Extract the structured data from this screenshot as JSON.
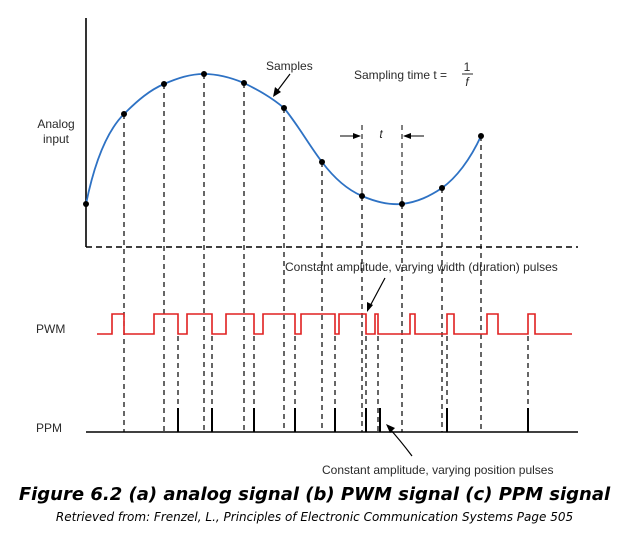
{
  "labels": {
    "analog_input_line1": "Analog",
    "analog_input_line2": "input",
    "samples": "Samples",
    "sampling_time_prefix": "Sampling time t =",
    "sampling_time_numerator": "1",
    "sampling_time_denominator": "f",
    "period_t": "t",
    "pwm_note": "Constant amplitude, varying width (duration) pulses",
    "pwm": "PWM",
    "ppm": "PPM",
    "ppm_note": "Constant amplitude, varying position pulses"
  },
  "caption": {
    "title": "Figure 6.2 (a) analog signal (b) PWM signal (c) PPM signal",
    "source": "Retrieved from: Frenzel, L., Principles of Electronic Communication Systems Page 505"
  },
  "colors": {
    "analog_curve": "#2e72c4",
    "pwm_signal": "#e02020",
    "ppm_signal": "#000000",
    "axes": "#000000"
  }
}
